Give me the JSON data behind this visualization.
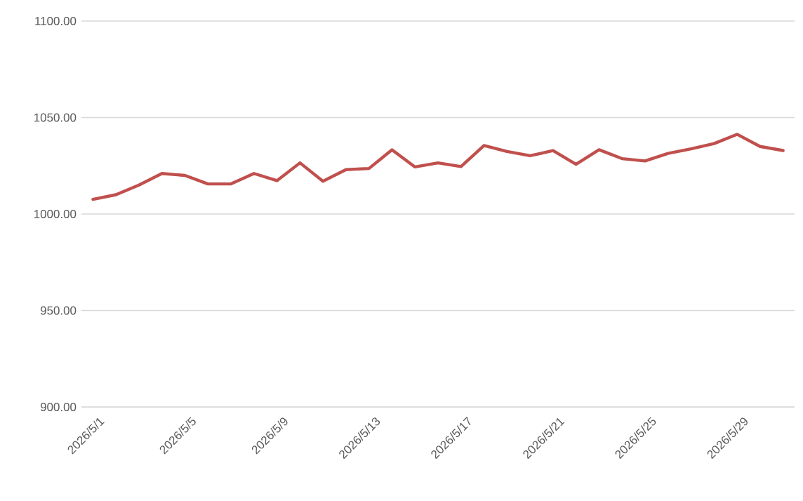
{
  "chart_data": {
    "type": "line",
    "categories": [
      "2026/5/1",
      null,
      null,
      null,
      "2026/5/5",
      null,
      null,
      null,
      "2026/5/9",
      null,
      null,
      null,
      "2026/5/13",
      null,
      null,
      null,
      "2026/5/17",
      null,
      null,
      null,
      "2026/5/21",
      null,
      null,
      null,
      "2026/5/25",
      null,
      null,
      null,
      "2026/5/29",
      null,
      null
    ],
    "series": [
      {
        "color": "#c0504d",
        "values": [
          1007.6,
          1010,
          1015,
          1021,
          1020,
          1015.6,
          1015.6,
          1021,
          1017.3,
          1026.5,
          1017,
          1023,
          1023.6,
          1033.3,
          1024.4,
          1026.5,
          1024.6,
          1035.5,
          1032.4,
          1030.2,
          1032.9,
          1025.8,
          1033.3,
          1028.7,
          1027.5,
          1031.4,
          1033.8,
          1036.5,
          1041.3,
          1035,
          1032.9
        ]
      }
    ],
    "ylim": [
      900,
      1100
    ],
    "yticks": [
      {
        "value": 900,
        "label": "900.00"
      },
      {
        "value": 950,
        "label": "950.00"
      },
      {
        "value": 1000,
        "label": "1000.00"
      },
      {
        "value": 1050,
        "label": "1050.00"
      },
      {
        "value": 1100,
        "label": "1100.00"
      }
    ],
    "grid": "y",
    "marker": "none",
    "line_style": "solid"
  }
}
